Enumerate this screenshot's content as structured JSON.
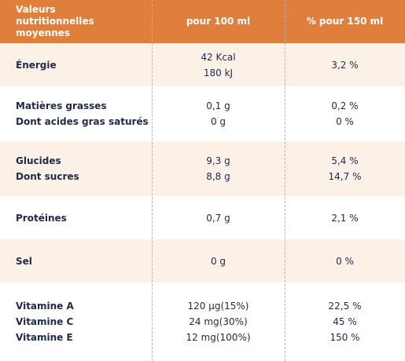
{
  "header": [
    "Valeurs nutritionnelles moyennes",
    "pour 100 ml",
    "% pour 150 ml"
  ],
  "rows": [
    {
      "labels": [
        "Énergie"
      ],
      "per100": [
        "42 Kcal",
        "180 kJ"
      ],
      "per150": [
        "3,2 %"
      ]
    },
    {
      "labels": [
        "Matières grasses",
        "Dont acides gras saturés"
      ],
      "per100": [
        "0,1 g",
        "0 g"
      ],
      "per150": [
        "0,2 %",
        "0 %"
      ]
    },
    {
      "labels": [
        "Glucides",
        "Dont sucres"
      ],
      "per100": [
        "9,3 g",
        "8,8 g"
      ],
      "per150": [
        "5,4 %",
        "14,7 %"
      ]
    },
    {
      "labels": [
        "Protéines"
      ],
      "per100": [
        "0,7 g"
      ],
      "per150": [
        "2,1 %"
      ]
    },
    {
      "labels": [
        "Sel"
      ],
      "per100": [
        "0 g"
      ],
      "per150": [
        "0 %"
      ]
    },
    {
      "labels": [
        "Vitamine A",
        "Vitamine C",
        "Vitamine E"
      ],
      "per100": [
        "120 µg(15%)",
        "24 mg(30%)",
        "12 mg(100%)"
      ],
      "per150": [
        "22,5 %",
        "45 %",
        "150 %"
      ]
    }
  ]
}
